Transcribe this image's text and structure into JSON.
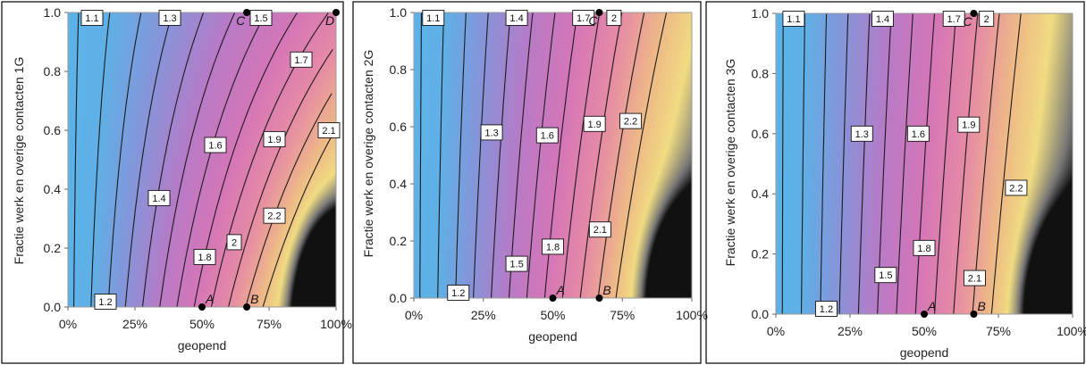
{
  "chart_data": [
    {
      "type": "heatmap",
      "ylabel": "Fractie werk en overige contacten 1G",
      "xlabel": "geopend",
      "x_ticks": [
        "0%",
        "25%",
        "50%",
        "75%",
        "100%"
      ],
      "y_ticks": [
        "0.0",
        "0.2",
        "0.4",
        "0.6",
        "0.8",
        "1.0"
      ],
      "xlim": [
        0,
        1
      ],
      "ylim": [
        0,
        1
      ],
      "color_stops": [
        [
          1.0,
          "#5ab4ea"
        ],
        [
          1.2,
          "#5fb0e6"
        ],
        [
          1.4,
          "#8a92d8"
        ],
        [
          1.6,
          "#b97ac6"
        ],
        [
          1.8,
          "#d476b8"
        ],
        [
          2.0,
          "#e68aa6"
        ],
        [
          2.2,
          "#eebb86"
        ],
        [
          2.35,
          "#f0dc82"
        ],
        [
          2.5,
          "#777777"
        ],
        [
          2.6,
          "#111111"
        ]
      ],
      "model": {
        "base": 1.066,
        "a": 1.56,
        "b": 0.45,
        "c": 0.4,
        "corner_dark": 1
      },
      "contour_levels": [
        1.1,
        1.2,
        1.3,
        1.4,
        1.5,
        1.6,
        1.7,
        1.8,
        1.9,
        2.0,
        2.1,
        2.2
      ],
      "contour_labels": [
        {
          "text": "1.1",
          "x": 0.09,
          "y": 0.99
        },
        {
          "text": "1.2",
          "x": 0.14,
          "y": 0.01
        },
        {
          "text": "1.3",
          "x": 0.38,
          "y": 0.99
        },
        {
          "text": "1.4",
          "x": 0.34,
          "y": 0.37
        },
        {
          "text": "1.5",
          "x": 0.72,
          "y": 0.99
        },
        {
          "text": "1.6",
          "x": 0.55,
          "y": 0.55
        },
        {
          "text": "1.7",
          "x": 0.87,
          "y": 0.84
        },
        {
          "text": "1.8",
          "x": 0.51,
          "y": 0.17
        },
        {
          "text": "1.9",
          "x": 0.77,
          "y": 0.57
        },
        {
          "text": "2",
          "x": 0.62,
          "y": 0.22
        },
        {
          "text": "2.1",
          "x": 0.99,
          "y": 0.6
        },
        {
          "text": "2.2",
          "x": 0.77,
          "y": 0.31
        }
      ],
      "points": [
        {
          "label": "A",
          "x": 0.5,
          "y": 0.0
        },
        {
          "label": "B",
          "x": 0.667,
          "y": 0.0
        },
        {
          "label": "C",
          "x": 0.667,
          "y": 1.0
        },
        {
          "label": "D",
          "x": 1.0,
          "y": 1.0
        }
      ]
    },
    {
      "type": "heatmap",
      "ylabel": "Fractie werk en overige contacten 2G",
      "xlabel": "geopend",
      "x_ticks": [
        "0%",
        "25%",
        "50%",
        "75%",
        "100%"
      ],
      "y_ticks": [
        "0.0",
        "0.2",
        "0.4",
        "0.6",
        "0.8",
        "1.0"
      ],
      "xlim": [
        0,
        1
      ],
      "ylim": [
        0,
        1
      ],
      "color_stops": [
        [
          1.0,
          "#5ab4ea"
        ],
        [
          1.2,
          "#5fb0e6"
        ],
        [
          1.4,
          "#8a92d8"
        ],
        [
          1.6,
          "#b97ac6"
        ],
        [
          1.8,
          "#d476b8"
        ],
        [
          2.0,
          "#e68aa6"
        ],
        [
          2.2,
          "#eebb86"
        ],
        [
          2.35,
          "#f0dc82"
        ],
        [
          2.5,
          "#777777"
        ],
        [
          2.6,
          "#111111"
        ]
      ],
      "model": {
        "base": 1.066,
        "a": 1.56,
        "b": 0.2,
        "c": 0.4,
        "corner_dark": 1
      },
      "contour_levels": [
        1.1,
        1.2,
        1.3,
        1.4,
        1.5,
        1.6,
        1.7,
        1.8,
        1.9,
        2.0,
        2.1,
        2.2
      ],
      "contour_labels": [
        {
          "text": "1.1",
          "x": 0.07,
          "y": 0.99
        },
        {
          "text": "1.2",
          "x": 0.16,
          "y": 0.01
        },
        {
          "text": "1.3",
          "x": 0.28,
          "y": 0.58
        },
        {
          "text": "1.4",
          "x": 0.37,
          "y": 0.99
        },
        {
          "text": "1.5",
          "x": 0.37,
          "y": 0.12
        },
        {
          "text": "1.6",
          "x": 0.48,
          "y": 0.57
        },
        {
          "text": "1.7",
          "x": 0.61,
          "y": 0.99
        },
        {
          "text": "1.8",
          "x": 0.5,
          "y": 0.18
        },
        {
          "text": "1.9",
          "x": 0.65,
          "y": 0.61
        },
        {
          "text": "2",
          "x": 0.72,
          "y": 0.99
        },
        {
          "text": "2.1",
          "x": 0.67,
          "y": 0.24
        },
        {
          "text": "2.2",
          "x": 0.78,
          "y": 0.62
        }
      ],
      "points": [
        {
          "label": "A",
          "x": 0.5,
          "y": 0.0
        },
        {
          "label": "B",
          "x": 0.667,
          "y": 0.0
        },
        {
          "label": "C",
          "x": 0.667,
          "y": 1.0
        }
      ]
    },
    {
      "type": "heatmap",
      "ylabel": "Fractie werk en overige contacten 3G",
      "xlabel": "geopend",
      "x_ticks": [
        "0%",
        "25%",
        "50%",
        "75%",
        "100%"
      ],
      "y_ticks": [
        "0.0",
        "0.2",
        "0.4",
        "0.6",
        "0.8",
        "1.0"
      ],
      "xlim": [
        0,
        1
      ],
      "ylim": [
        0,
        1
      ],
      "color_stops": [
        [
          1.0,
          "#5ab4ea"
        ],
        [
          1.2,
          "#5fb0e6"
        ],
        [
          1.4,
          "#8a92d8"
        ],
        [
          1.6,
          "#b97ac6"
        ],
        [
          1.8,
          "#d476b8"
        ],
        [
          2.0,
          "#e68aa6"
        ],
        [
          2.2,
          "#eebb86"
        ],
        [
          2.35,
          "#f0dc82"
        ],
        [
          2.5,
          "#777777"
        ],
        [
          2.6,
          "#111111"
        ]
      ],
      "model": {
        "base": 1.066,
        "a": 1.56,
        "b": 0.12,
        "c": 0.4,
        "corner_dark": 1
      },
      "contour_levels": [
        1.1,
        1.2,
        1.3,
        1.4,
        1.5,
        1.6,
        1.7,
        1.8,
        1.9,
        2.0,
        2.1,
        2.2
      ],
      "contour_labels": [
        {
          "text": "1.1",
          "x": 0.06,
          "y": 0.99
        },
        {
          "text": "1.2",
          "x": 0.17,
          "y": 0.01
        },
        {
          "text": "1.3",
          "x": 0.29,
          "y": 0.6
        },
        {
          "text": "1.4",
          "x": 0.36,
          "y": 0.99
        },
        {
          "text": "1.5",
          "x": 0.37,
          "y": 0.13
        },
        {
          "text": "1.6",
          "x": 0.48,
          "y": 0.6
        },
        {
          "text": "1.7",
          "x": 0.6,
          "y": 0.99
        },
        {
          "text": "1.8",
          "x": 0.5,
          "y": 0.22
        },
        {
          "text": "1.9",
          "x": 0.65,
          "y": 0.63
        },
        {
          "text": "2",
          "x": 0.71,
          "y": 0.99
        },
        {
          "text": "2.1",
          "x": 0.67,
          "y": 0.12
        },
        {
          "text": "2.2",
          "x": 0.81,
          "y": 0.42
        }
      ],
      "points": [
        {
          "label": "A",
          "x": 0.5,
          "y": 0.0
        },
        {
          "label": "B",
          "x": 0.667,
          "y": 0.0
        },
        {
          "label": "C",
          "x": 0.667,
          "y": 1.0
        }
      ]
    }
  ]
}
